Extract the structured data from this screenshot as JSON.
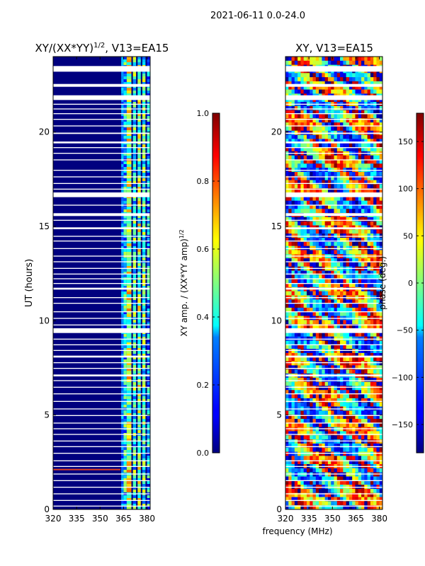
{
  "figure_title": "2021-06-11 0.0-24.0",
  "chart_data": [
    {
      "type": "heatmap",
      "title": "XY/(XX*YY)^1/2, V13=EA15",
      "xlabel": "",
      "ylabel": "UT (hours)",
      "x_ticks": [
        "320",
        "335",
        "350",
        "365",
        "380"
      ],
      "y_ticks": [
        "0",
        "5",
        "10",
        "15",
        "20"
      ],
      "xlim": [
        320,
        382
      ],
      "ylim": [
        0,
        24
      ],
      "colorbar": {
        "label": "XY amp. / (XX*YY amp)^1/2",
        "range": [
          0.0,
          1.0
        ],
        "ticks": [
          "0.0",
          "0.2",
          "0.4",
          "0.6",
          "0.8",
          "1.0"
        ],
        "colormap": "jet"
      }
    },
    {
      "type": "heatmap",
      "title": "XY, V13=EA15",
      "xlabel": "frequency (MHz)",
      "ylabel": "",
      "x_ticks": [
        "320",
        "335",
        "350",
        "365",
        "380"
      ],
      "y_ticks": [
        "0",
        "5",
        "10",
        "15",
        "20"
      ],
      "xlim": [
        320,
        382
      ],
      "ylim": [
        0,
        24
      ],
      "colorbar": {
        "label": "phase (deg.)",
        "range": [
          -180,
          180
        ],
        "ticks": [
          "−150",
          "−100",
          "−50",
          "0",
          "50",
          "100",
          "150"
        ],
        "colormap": "jet"
      }
    }
  ]
}
